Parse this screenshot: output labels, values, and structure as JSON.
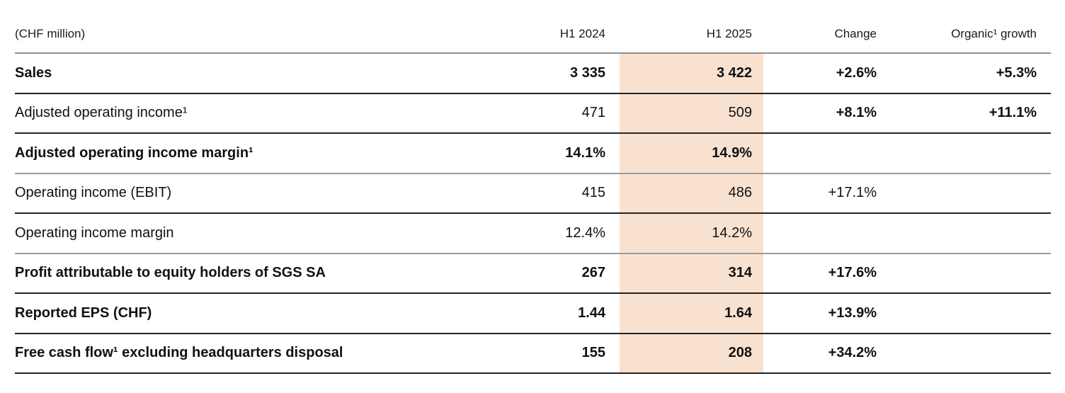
{
  "table": {
    "unit_label": "(CHF million)",
    "header": {
      "h1_2024": "H1 2024",
      "h1_2025": "H1 2025",
      "change": "Change",
      "organic": "Organic¹ growth"
    },
    "highlight_color": "#f9e1d0",
    "rows": [
      {
        "label": "Sales",
        "h1_2024": "3 335",
        "h1_2025": "3 422",
        "change": "+2.6%",
        "organic": "+5.3%"
      },
      {
        "label": "Adjusted operating income¹",
        "h1_2024": "471",
        "h1_2025": "509",
        "change": "+8.1%",
        "organic": "+11.1%"
      },
      {
        "label": "Adjusted operating income margin¹",
        "h1_2024": "14.1%",
        "h1_2025": "14.9%",
        "change": "",
        "organic": ""
      },
      {
        "label": "Operating income (EBIT)",
        "h1_2024": "415",
        "h1_2025": "486",
        "change": "+17.1%",
        "organic": ""
      },
      {
        "label": "Operating income margin",
        "h1_2024": "12.4%",
        "h1_2025": "14.2%",
        "change": "",
        "organic": ""
      },
      {
        "label": "Profit attributable to equity holders of SGS SA",
        "h1_2024": "267",
        "h1_2025": "314",
        "change": "+17.6%",
        "organic": ""
      },
      {
        "label": "Reported EPS (CHF)",
        "h1_2024": "1.44",
        "h1_2025": "1.64",
        "change": "+13.9%",
        "organic": ""
      },
      {
        "label": "Free cash flow¹ excluding headquarters disposal",
        "h1_2024": "155",
        "h1_2025": "208",
        "change": "+34.2%",
        "organic": ""
      }
    ]
  }
}
